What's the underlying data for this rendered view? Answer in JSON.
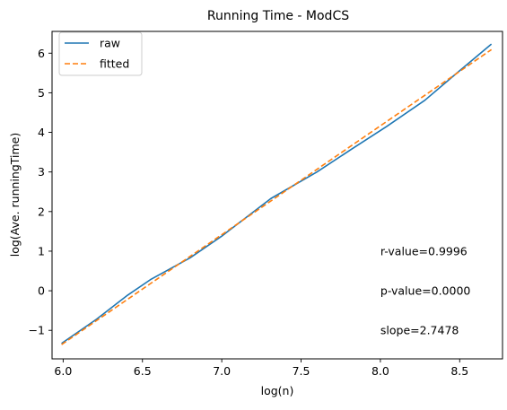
{
  "chart_data": {
    "type": "line",
    "title": "Running Time - ModCS",
    "xlabel": "log(n)",
    "ylabel": "log(Ave. runningTime)",
    "xlim": [
      5.93,
      8.77
    ],
    "ylim": [
      -1.72,
      6.55
    ],
    "x_ticks": [
      6.0,
      6.5,
      7.0,
      7.5,
      8.0,
      8.5
    ],
    "x_tick_labels": [
      "6.0",
      "6.5",
      "7.0",
      "7.5",
      "8.0",
      "8.5"
    ],
    "y_ticks": [
      -1,
      0,
      1,
      2,
      3,
      4,
      5,
      6
    ],
    "y_tick_labels": [
      "−1",
      "0",
      "1",
      "2",
      "3",
      "4",
      "5",
      "6"
    ],
    "grid": false,
    "legend_position": "top-left",
    "series": [
      {
        "name": "raw",
        "color": "#1f77b4",
        "style": "solid",
        "x": [
          5.99,
          6.21,
          6.4,
          6.55,
          6.8,
          7.0,
          7.31,
          7.6,
          7.82,
          8.04,
          8.28,
          8.48,
          8.7
        ],
        "y": [
          -1.33,
          -0.72,
          -0.13,
          0.28,
          0.83,
          1.38,
          2.33,
          3.0,
          3.58,
          4.15,
          4.81,
          5.49,
          6.23
        ]
      },
      {
        "name": "fitted",
        "color": "#ff7f0e",
        "style": "dashed",
        "x": [
          5.99,
          8.7
        ],
        "y": [
          -1.36,
          6.09
        ]
      }
    ],
    "annotations": [
      {
        "text": "r-value=0.9996",
        "x": 8.0,
        "y": 1.0
      },
      {
        "text": "p-value=0.0000",
        "x": 8.0,
        "y": 0.0
      },
      {
        "text": "slope=2.7478",
        "x": 8.0,
        "y": -1.0
      }
    ]
  }
}
